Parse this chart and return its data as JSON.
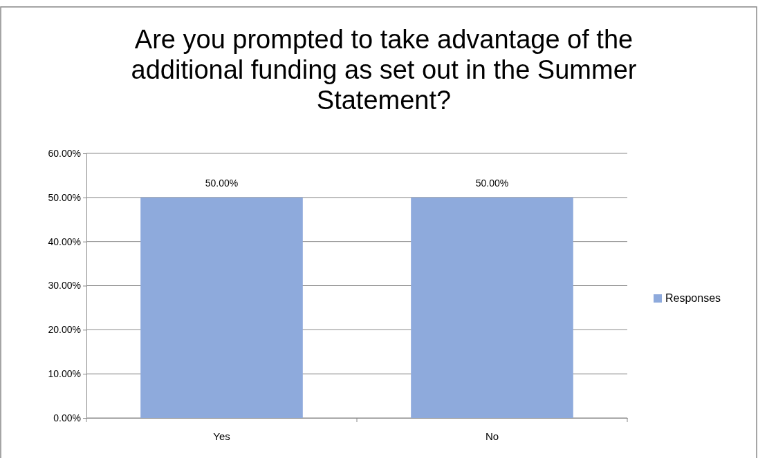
{
  "chart_data": {
    "type": "bar",
    "title": "Are you prompted to take advantage of the additional funding as set out in the Summer Statement?",
    "categories": [
      "Yes",
      "No"
    ],
    "series": [
      {
        "name": "Responses",
        "color": "#8eaadc",
        "values": [
          50,
          50
        ],
        "value_labels": [
          "50.00%",
          "50.00%"
        ]
      }
    ],
    "ylim": [
      0,
      60
    ],
    "yticks": [
      {
        "value": 0,
        "label": "0.00%"
      },
      {
        "value": 10,
        "label": "10.00%"
      },
      {
        "value": 20,
        "label": "20.00%"
      },
      {
        "value": 30,
        "label": "30.00%"
      },
      {
        "value": 40,
        "label": "40.00%"
      },
      {
        "value": 50,
        "label": "50.00%"
      },
      {
        "value": 60,
        "label": "60.00%"
      }
    ],
    "grid": "y",
    "legend": "right"
  }
}
